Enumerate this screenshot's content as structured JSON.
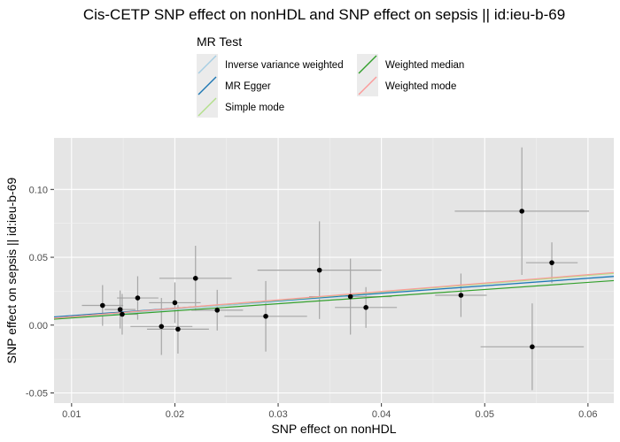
{
  "chart_data": {
    "type": "scatter",
    "title": "Cis-CETP SNP effect on nonHDL and SNP effect on sepsis || id:ieu-b-69",
    "xlabel": "SNP effect on nonHDL",
    "ylabel": "SNP effect on sepsis || id:ieu-b-69",
    "xlim": [
      0.0083,
      0.0625
    ],
    "ylim": [
      -0.0575,
      0.138
    ],
    "x_ticks": [
      0.01,
      0.02,
      0.03,
      0.04,
      0.05,
      0.06
    ],
    "x_tick_labels": [
      "0.01",
      "0.02",
      "0.03",
      "0.04",
      "0.05",
      "0.06"
    ],
    "y_ticks": [
      -0.05,
      0.0,
      0.05,
      0.1
    ],
    "y_tick_labels": [
      "-0.05",
      "0.00",
      "0.05",
      "0.10"
    ],
    "grid": true,
    "background": "#e5e5e5",
    "legend": {
      "title": "MR Test",
      "placement": "top",
      "entries": [
        {
          "label": "Inverse variance weighted",
          "color": "#a6cee3"
        },
        {
          "label": "MR Egger",
          "color": "#1f78b4"
        },
        {
          "label": "Simple mode",
          "color": "#b2df8a"
        },
        {
          "label": "Weighted median",
          "color": "#33a02c"
        },
        {
          "label": "Weighted mode",
          "color": "#fb9a99"
        }
      ]
    },
    "points": [
      {
        "x": 0.013,
        "y": 0.0145,
        "x_err": 0.002,
        "y_err": 0.015
      },
      {
        "x": 0.0147,
        "y": 0.0115,
        "x_err": 0.0015,
        "y_err": 0.014
      },
      {
        "x": 0.0149,
        "y": 0.008,
        "x_err": 0.0015,
        "y_err": 0.015
      },
      {
        "x": 0.0164,
        "y": 0.02,
        "x_err": 0.002,
        "y_err": 0.016
      },
      {
        "x": 0.0187,
        "y": -0.001,
        "x_err": 0.003,
        "y_err": 0.021
      },
      {
        "x": 0.02,
        "y": 0.0165,
        "x_err": 0.0025,
        "y_err": 0.015
      },
      {
        "x": 0.0203,
        "y": -0.003,
        "x_err": 0.003,
        "y_err": 0.018
      },
      {
        "x": 0.022,
        "y": 0.0345,
        "x_err": 0.0035,
        "y_err": 0.024
      },
      {
        "x": 0.0241,
        "y": 0.011,
        "x_err": 0.0025,
        "y_err": 0.015
      },
      {
        "x": 0.0288,
        "y": 0.0065,
        "x_err": 0.004,
        "y_err": 0.026
      },
      {
        "x": 0.034,
        "y": 0.0405,
        "x_err": 0.006,
        "y_err": 0.036
      },
      {
        "x": 0.037,
        "y": 0.021,
        "x_err": 0.004,
        "y_err": 0.028
      },
      {
        "x": 0.0385,
        "y": 0.013,
        "x_err": 0.003,
        "y_err": 0.015
      },
      {
        "x": 0.0477,
        "y": 0.022,
        "x_err": 0.0025,
        "y_err": 0.016
      },
      {
        "x": 0.0536,
        "y": 0.084,
        "x_err": 0.0065,
        "y_err": 0.047
      },
      {
        "x": 0.0546,
        "y": -0.016,
        "x_err": 0.005,
        "y_err": 0.032
      },
      {
        "x": 0.0565,
        "y": 0.046,
        "x_err": 0.0025,
        "y_err": 0.015
      }
    ],
    "lines": [
      {
        "name": "Inverse variance weighted",
        "color": "#a6cee3",
        "slope": 0.58,
        "intercept": 0.0
      },
      {
        "name": "MR Egger",
        "color": "#1f78b4",
        "slope": 0.55,
        "intercept": 0.0015
      },
      {
        "name": "Simple mode",
        "color": "#b2df8a",
        "slope": 0.61,
        "intercept": 0.0
      },
      {
        "name": "Weighted median",
        "color": "#33a02c",
        "slope": 0.525,
        "intercept": 0.0
      },
      {
        "name": "Weighted mode",
        "color": "#fb9a99",
        "slope": 0.62,
        "intercept": 0.0
      }
    ]
  }
}
